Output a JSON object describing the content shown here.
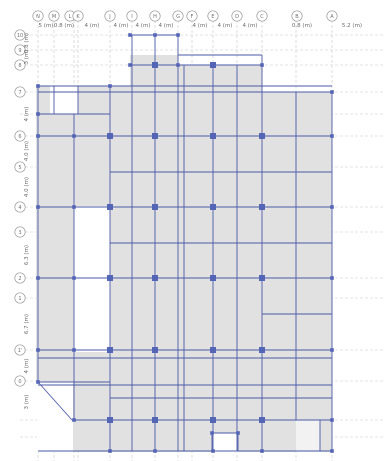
{
  "app": {
    "view": "Plan View"
  },
  "colors": {
    "background": "#ffffff",
    "slab_fill": "#e1e1e1",
    "beam": "#4b5aa8",
    "column": "#5565b5",
    "grid_line": "#c8c8c8",
    "bubble": "#9a9a9a",
    "text": "#6a6a6a"
  },
  "grid_x": [
    {
      "label": "N"
    },
    {
      "label": "M"
    },
    {
      "label": "L"
    },
    {
      "label": "K"
    },
    {
      "label": "J"
    },
    {
      "label": "I"
    },
    {
      "label": "H"
    },
    {
      "label": "G"
    },
    {
      "label": "F"
    },
    {
      "label": "E"
    },
    {
      "label": "D"
    },
    {
      "label": "C"
    },
    {
      "label": "B"
    },
    {
      "label": "A"
    }
  ],
  "grid_y": [
    {
      "label": "10"
    },
    {
      "label": "9"
    },
    {
      "label": "8"
    },
    {
      "label": "7"
    },
    {
      "label": "6"
    },
    {
      "label": "5"
    },
    {
      "label": "4"
    },
    {
      "label": "3"
    },
    {
      "label": "2"
    },
    {
      "label": "1"
    },
    {
      "label": "1'"
    },
    {
      "label": "0"
    }
  ],
  "x_spacing_labels": [
    "5 (m)",
    "0.8 (m)",
    "4 (m)",
    "4 (m)",
    "4 (m)",
    "4 (m)",
    "4 (m)",
    "4 (m)",
    "4 (m)",
    "0.8 (m)",
    "5.2 (m)"
  ],
  "y_spacing_labels": [
    "0.8 (m)",
    "3 (m)",
    "4 (m)",
    "4.0 (m)",
    "4.0 (m)",
    "6.3 (m)",
    "6.7 (m)",
    "4 (m)",
    "3 (m)"
  ]
}
